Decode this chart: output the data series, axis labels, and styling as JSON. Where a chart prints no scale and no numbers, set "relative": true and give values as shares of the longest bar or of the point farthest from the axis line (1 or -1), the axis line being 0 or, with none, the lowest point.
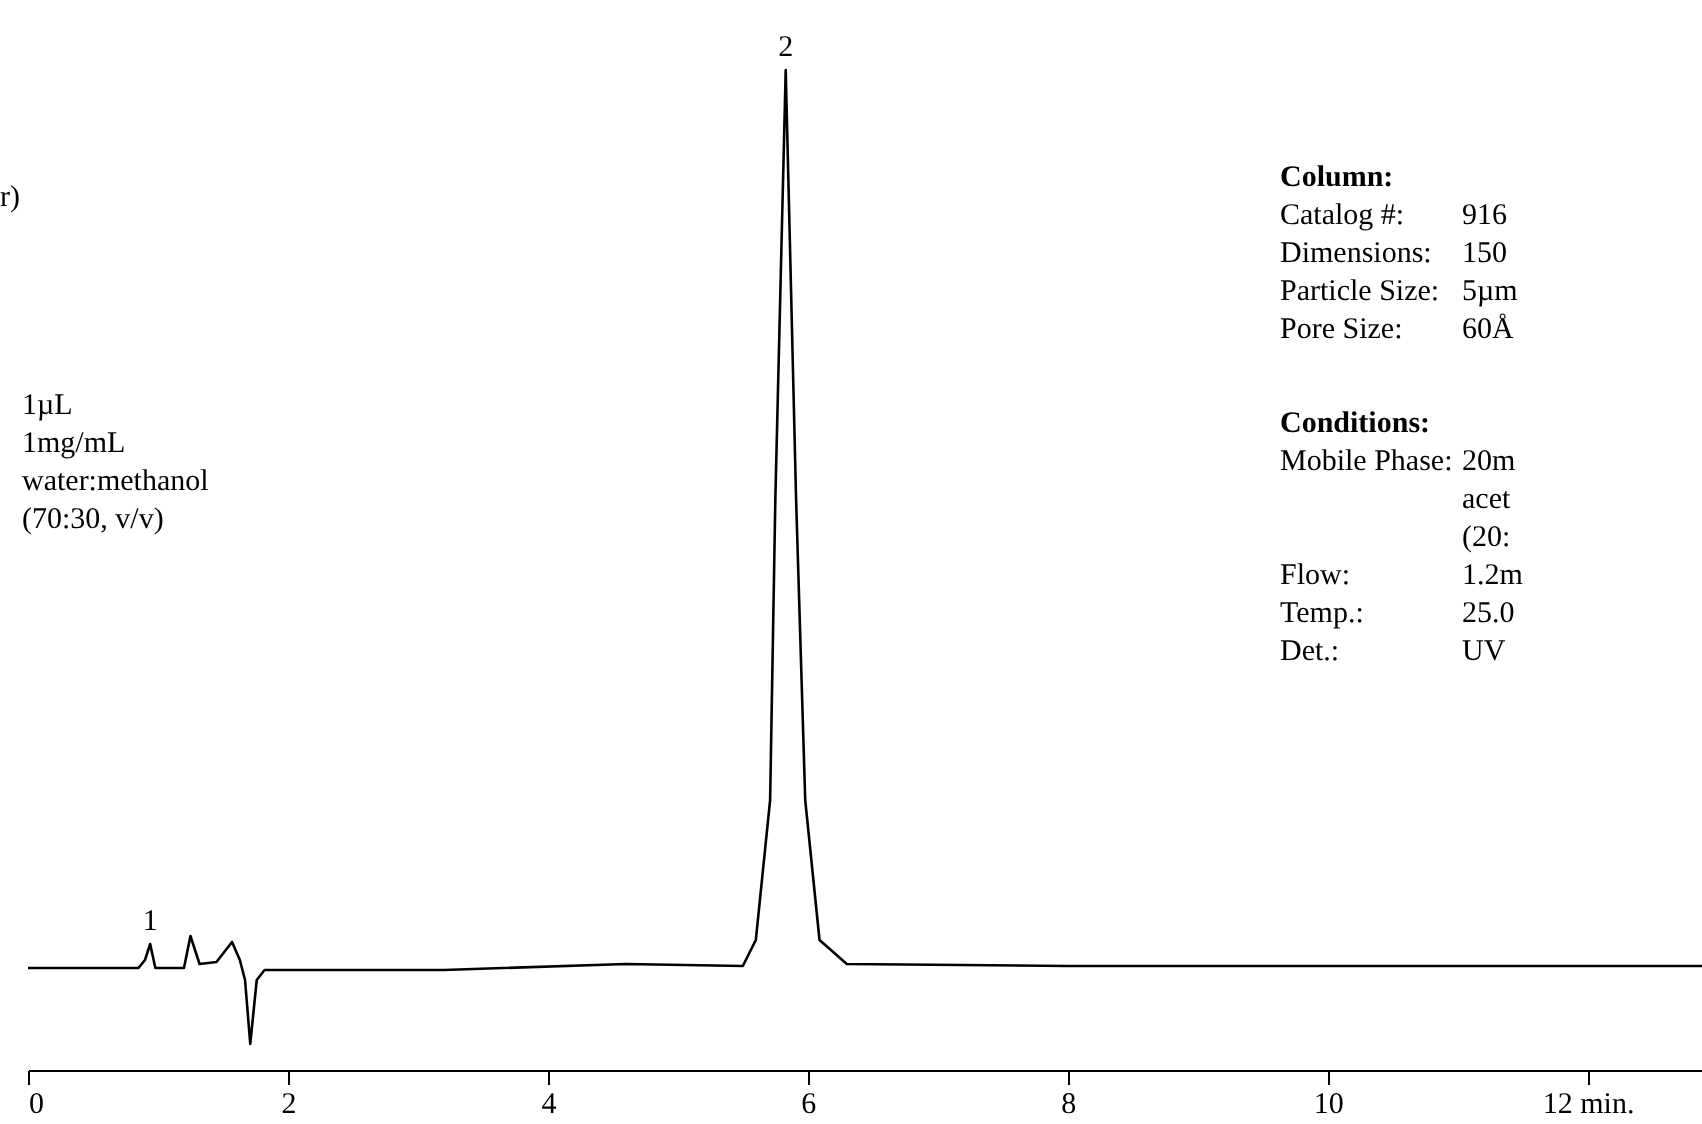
{
  "chart_data": {
    "type": "line",
    "relative": true,
    "x": [
      0,
      0.85,
      0.9,
      0.94,
      0.98,
      1.2,
      1.25,
      1.32,
      1.45,
      1.57,
      1.63,
      1.67,
      1.71,
      1.76,
      1.82,
      3.2,
      4.6,
      5.5,
      5.6,
      5.71,
      5.75,
      5.83,
      5.91,
      5.98,
      6.09,
      6.3,
      8,
      12.88
    ],
    "series": [
      {
        "color": "#000000",
        "values": [
          0.102,
          0.102,
          0.11,
          0.126,
          0.102,
          0.102,
          0.134,
          0.106,
          0.108,
          0.128,
          0.11,
          0.09,
          0.026,
          0.09,
          0.1,
          0.1,
          0.106,
          0.104,
          0.13,
          0.27,
          0.57,
          1.0,
          0.57,
          0.27,
          0.13,
          0.106,
          0.104,
          0.104
        ]
      }
    ],
    "xlim": [
      0,
      12.88
    ],
    "xticks": [
      0,
      2,
      4,
      6,
      8,
      10,
      {
        "value": 12,
        "label": "12 min."
      }
    ],
    "grid": false,
    "marker": "none",
    "line_style": "solid",
    "annotations": [
      {
        "text": "1",
        "x": 0.94,
        "y": 0.126
      },
      {
        "text": "2",
        "x": 5.83,
        "y": 1.0
      },
      "r)",
      "1µL",
      "1mg/mL",
      "water:methanol",
      "(70:30,  v/v)",
      "Column:",
      "Catalog #:",
      "916",
      "Dimensions:",
      "150",
      "Particle Size:",
      "5µm",
      "Pore Size:",
      "60Å",
      "Conditions:",
      "Mobile Phase:",
      "20m",
      "acet",
      "(20:",
      "Flow:",
      "1.2m",
      "Temp.:",
      "25.0",
      "Det.:",
      "UV"
    ]
  }
}
